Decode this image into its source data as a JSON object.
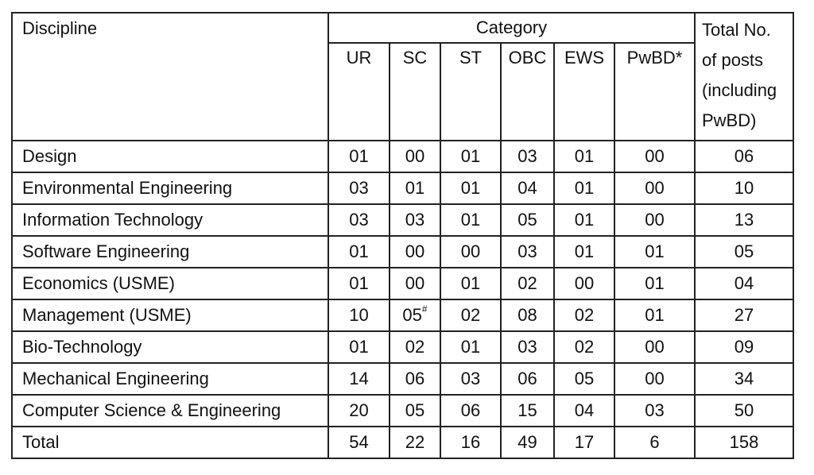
{
  "table": {
    "headers": {
      "discipline": "Discipline",
      "category": "Category",
      "sub": [
        "UR",
        "SC",
        "ST",
        "OBC",
        "EWS",
        "PwBD*"
      ],
      "total_lines": [
        "Total No.",
        "of posts",
        "(including",
        "PwBD)"
      ]
    },
    "rows": [
      {
        "discipline": "Design",
        "ur": "01",
        "sc": "00",
        "st": "01",
        "obc": "03",
        "ews": "01",
        "pwbd": "00",
        "total": "06"
      },
      {
        "discipline": "Environmental Engineering",
        "ur": "03",
        "sc": "01",
        "st": "01",
        "obc": "04",
        "ews": "01",
        "pwbd": "00",
        "total": "10"
      },
      {
        "discipline": "Information Technology",
        "ur": "03",
        "sc": "03",
        "st": "01",
        "obc": "05",
        "ews": "01",
        "pwbd": "00",
        "total": "13"
      },
      {
        "discipline": "Software Engineering",
        "ur": "01",
        "sc": "00",
        "st": "00",
        "obc": "03",
        "ews": "01",
        "pwbd": "01",
        "total": "05"
      },
      {
        "discipline": "Economics (USME)",
        "ur": "01",
        "sc": "00",
        "st": "01",
        "obc": "02",
        "ews": "00",
        "pwbd": "01",
        "total": "04"
      },
      {
        "discipline": "Management (USME)",
        "ur": "10",
        "sc": "05",
        "sc_mark": "#",
        "st": "02",
        "obc": "08",
        "ews": "02",
        "pwbd": "01",
        "total": "27"
      },
      {
        "discipline": "Bio-Technology",
        "ur": "01",
        "sc": "02",
        "st": "01",
        "obc": "03",
        "ews": "02",
        "pwbd": "00",
        "total": "09"
      },
      {
        "discipline": "Mechanical Engineering",
        "ur": "14",
        "sc": "06",
        "st": "03",
        "obc": "06",
        "ews": "05",
        "pwbd": "00",
        "total": "34"
      },
      {
        "discipline": "Computer Science & Engineering",
        "ur": "20",
        "sc": "05",
        "st": "06",
        "obc": "15",
        "ews": "04",
        "pwbd": "03",
        "total": "50"
      },
      {
        "discipline": "Total",
        "ur": "54",
        "sc": "22",
        "st": "16",
        "obc": "49",
        "ews": "17",
        "pwbd": "6",
        "total": "158"
      }
    ]
  }
}
